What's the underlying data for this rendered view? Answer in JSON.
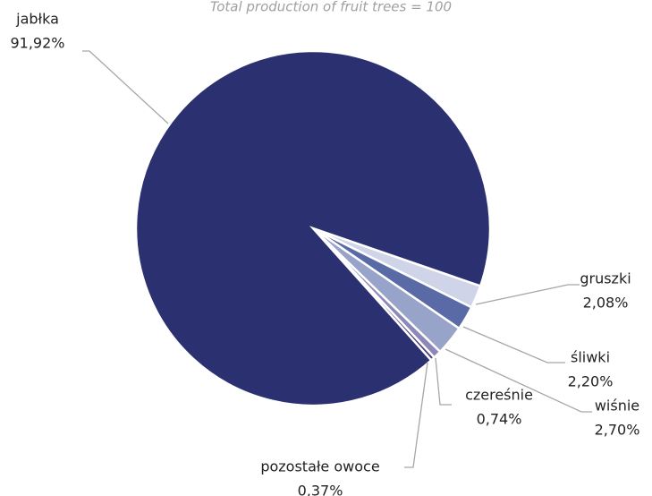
{
  "chart_data": {
    "type": "pie",
    "subtitle": "Total production  of fruit trees = 100",
    "categories": [
      "gruszki",
      "śliwki",
      "wiśnie",
      "czereśnie",
      "pozostałe owoce",
      "jabłka"
    ],
    "values": [
      2.08,
      2.2,
      2.7,
      0.74,
      0.37,
      91.92
    ],
    "value_labels": [
      "2,08%",
      "2,20%",
      "2,70%",
      "0,74%",
      "0,37%",
      "91,92%"
    ],
    "colors": [
      "#d0d4e9",
      "#5a6aa6",
      "#97a3c8",
      "#8c88b8",
      "#4a3f7a",
      "#2b3170"
    ]
  }
}
